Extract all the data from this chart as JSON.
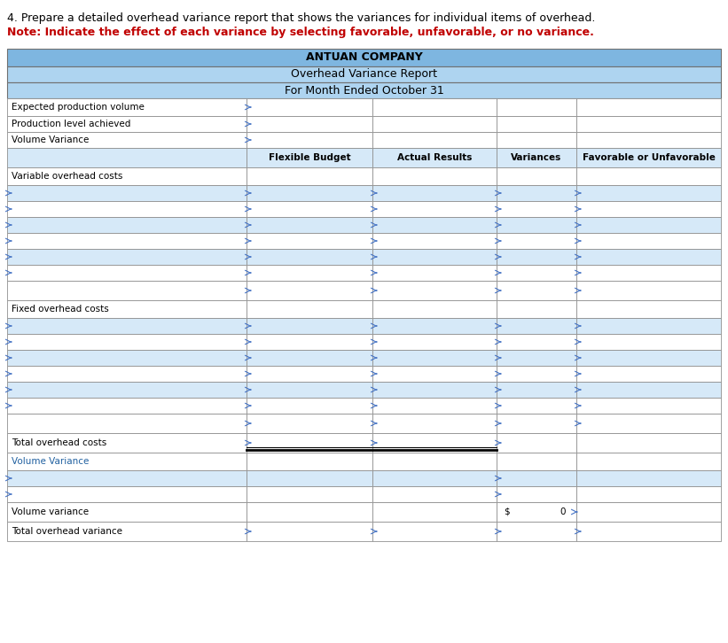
{
  "title_line1": "ANTUAN COMPANY",
  "title_line2": "Overhead Variance Report",
  "title_line3": "For Month Ended October 31",
  "header_bg": "#7EB6E0",
  "subheader_bg": "#AED4F0",
  "white": "#FFFFFF",
  "blue_stripe": "#D6E9F8",
  "text_color_black": "#000000",
  "text_color_red": "#C00000",
  "text_color_blue": "#2060A0",
  "arrow_color": "#4472C4",
  "col_headers": [
    "Flexible Budget",
    "Actual Results",
    "Variances",
    "Favorable or Unfavorable"
  ],
  "note_line1": "4. Prepare a detailed overhead variance report that shows the variances for individual items of overhead.",
  "note_line2": "Note: Indicate the effect of each variance by selecting favorable, unfavorable, or no variance.",
  "fig_width": 8.21,
  "fig_height": 7.26,
  "dpi": 100
}
